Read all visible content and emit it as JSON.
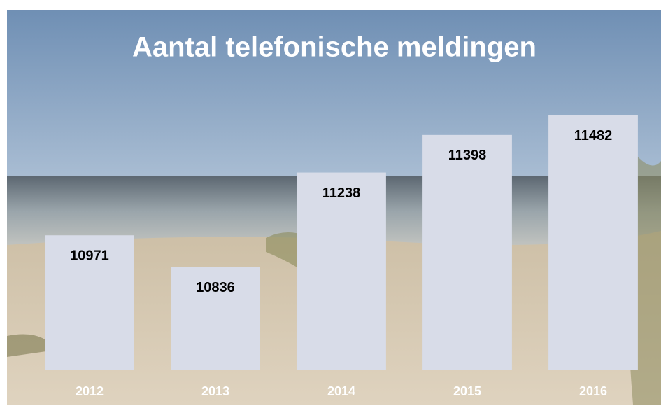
{
  "chart_data": {
    "type": "bar",
    "title": "Aantal telefonische meldingen",
    "categories": [
      "2012",
      "2013",
      "2014",
      "2015",
      "2016"
    ],
    "values": [
      10971,
      10836,
      11238,
      11398,
      11482
    ],
    "color": "#d8dce8",
    "ylim": [
      10400,
      11600
    ]
  }
}
